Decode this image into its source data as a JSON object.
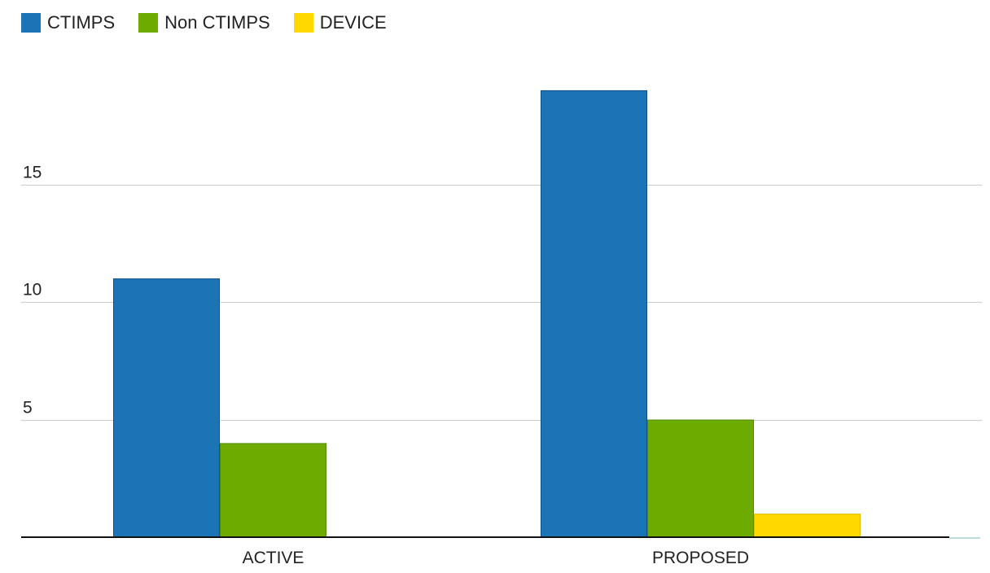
{
  "chart_data": {
    "type": "bar",
    "categories": [
      "ACTIVE",
      "PROPOSED"
    ],
    "series": [
      {
        "name": "CTIMPS",
        "values": [
          11,
          19
        ],
        "color": "#1a74b6",
        "border": "#0e4f85"
      },
      {
        "name": "Non CTIMPS",
        "values": [
          4,
          5
        ],
        "color": "#6eab01",
        "border": "#4f8a00"
      },
      {
        "name": "DEVICE",
        "values": [
          0,
          1
        ],
        "color": "#ffd800",
        "border": "#e0bc00"
      }
    ],
    "y_ticks": [
      5,
      10,
      15
    ],
    "ylim": [
      0,
      21
    ],
    "grid": true,
    "legend_position": "top-left",
    "title": "",
    "xlabel": "",
    "ylabel": ""
  }
}
